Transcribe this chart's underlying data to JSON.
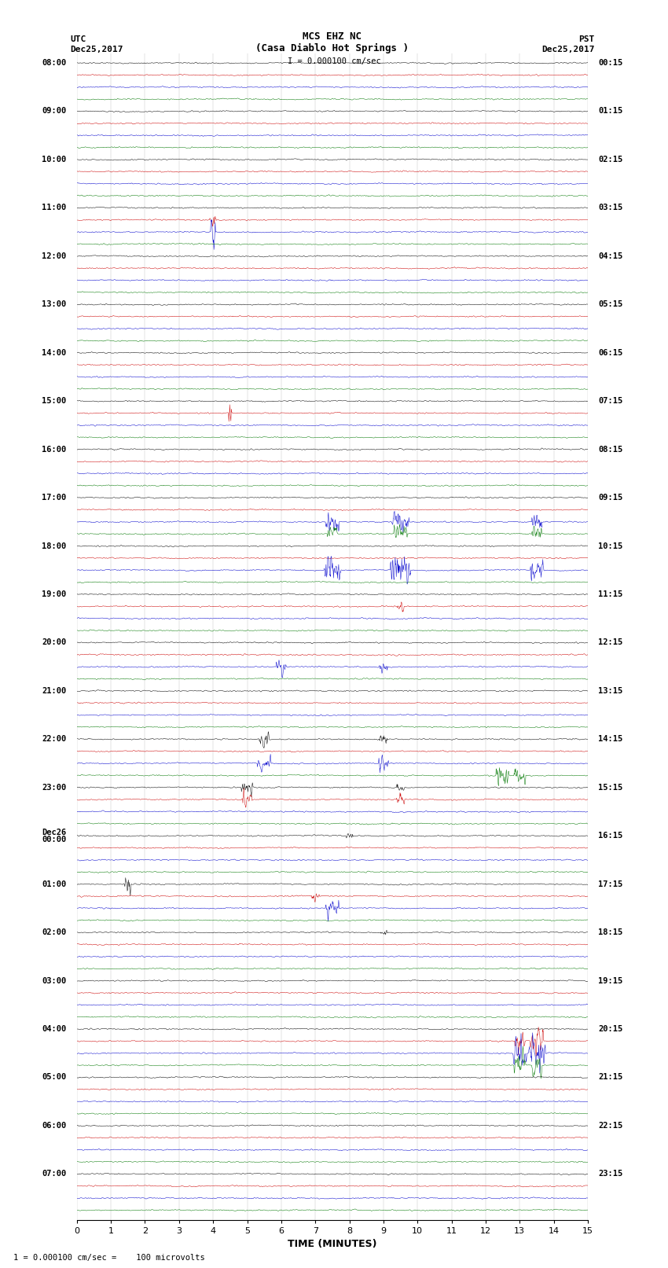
{
  "title_line1": "MCS EHZ NC",
  "title_line2": "(Casa Diablo Hot Springs )",
  "scale_label": "I = 0.000100 cm/sec",
  "footer_label": "1 = 0.000100 cm/sec =    100 microvolts",
  "left_label_top": "UTC",
  "left_label_date": "Dec25,2017",
  "right_label_top": "PST",
  "right_label_date": "Dec25,2017",
  "xlabel": "TIME (MINUTES)",
  "xlim": [
    0,
    15
  ],
  "xticks": [
    0,
    1,
    2,
    3,
    4,
    5,
    6,
    7,
    8,
    9,
    10,
    11,
    12,
    13,
    14,
    15
  ],
  "background_color": "white",
  "trace_color_black": "#000000",
  "trace_color_red": "#cc0000",
  "trace_color_blue": "#0000cc",
  "trace_color_green": "#007700",
  "noise_std": 0.008,
  "utc_labels": [
    [
      0,
      "08:00"
    ],
    [
      4,
      "09:00"
    ],
    [
      8,
      "10:00"
    ],
    [
      12,
      "11:00"
    ],
    [
      16,
      "12:00"
    ],
    [
      20,
      "13:00"
    ],
    [
      24,
      "14:00"
    ],
    [
      28,
      "15:00"
    ],
    [
      32,
      "16:00"
    ],
    [
      36,
      "17:00"
    ],
    [
      40,
      "18:00"
    ],
    [
      44,
      "19:00"
    ],
    [
      48,
      "20:00"
    ],
    [
      52,
      "21:00"
    ],
    [
      56,
      "22:00"
    ],
    [
      60,
      "23:00"
    ],
    [
      64,
      "Dec26\n00:00"
    ],
    [
      68,
      "01:00"
    ],
    [
      72,
      "02:00"
    ],
    [
      76,
      "03:00"
    ],
    [
      80,
      "04:00"
    ],
    [
      84,
      "05:00"
    ],
    [
      88,
      "06:00"
    ],
    [
      92,
      "07:00"
    ]
  ],
  "pst_labels": [
    [
      0,
      "00:15"
    ],
    [
      4,
      "01:15"
    ],
    [
      8,
      "02:15"
    ],
    [
      12,
      "03:15"
    ],
    [
      16,
      "04:15"
    ],
    [
      20,
      "05:15"
    ],
    [
      24,
      "06:15"
    ],
    [
      28,
      "07:15"
    ],
    [
      32,
      "08:15"
    ],
    [
      36,
      "09:15"
    ],
    [
      40,
      "10:15"
    ],
    [
      44,
      "11:15"
    ],
    [
      48,
      "12:15"
    ],
    [
      52,
      "13:15"
    ],
    [
      56,
      "14:15"
    ],
    [
      60,
      "15:15"
    ],
    [
      64,
      "16:15"
    ],
    [
      68,
      "17:15"
    ],
    [
      72,
      "18:15"
    ],
    [
      76,
      "19:15"
    ],
    [
      80,
      "20:15"
    ],
    [
      84,
      "21:15"
    ],
    [
      88,
      "22:15"
    ],
    [
      92,
      "23:15"
    ]
  ]
}
